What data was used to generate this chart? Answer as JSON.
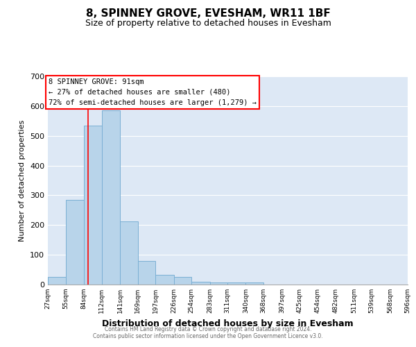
{
  "title": "8, SPINNEY GROVE, EVESHAM, WR11 1BF",
  "subtitle": "Size of property relative to detached houses in Evesham",
  "xlabel": "Distribution of detached houses by size in Evesham",
  "ylabel": "Number of detached properties",
  "bar_color": "#b8d4ea",
  "bar_edge_color": "#7aafd4",
  "background_color": "#dde8f5",
  "grid_color": "#ffffff",
  "bin_edges": [
    27,
    55,
    84,
    112,
    141,
    169,
    197,
    226,
    254,
    283,
    311,
    340,
    368,
    397,
    425,
    454,
    482,
    511,
    539,
    568,
    596
  ],
  "bin_labels": [
    "27sqm",
    "55sqm",
    "84sqm",
    "112sqm",
    "141sqm",
    "169sqm",
    "197sqm",
    "226sqm",
    "254sqm",
    "283sqm",
    "311sqm",
    "340sqm",
    "368sqm",
    "397sqm",
    "425sqm",
    "454sqm",
    "482sqm",
    "511sqm",
    "539sqm",
    "568sqm",
    "596sqm"
  ],
  "bar_heights": [
    25,
    285,
    535,
    585,
    212,
    80,
    33,
    25,
    10,
    8,
    8,
    7,
    0,
    0,
    0,
    0,
    0,
    0,
    0,
    0
  ],
  "red_line_x": 91,
  "ylim": [
    0,
    700
  ],
  "yticks": [
    0,
    100,
    200,
    300,
    400,
    500,
    600,
    700
  ],
  "annotation_title": "8 SPINNEY GROVE: 91sqm",
  "annotation_line2": "← 27% of detached houses are smaller (480)",
  "annotation_line3": "72% of semi-detached houses are larger (1,279) →",
  "footer_line1": "Contains HM Land Registry data © Crown copyright and database right 2024.",
  "footer_line2": "Contains public sector information licensed under the Open Government Licence v3.0."
}
